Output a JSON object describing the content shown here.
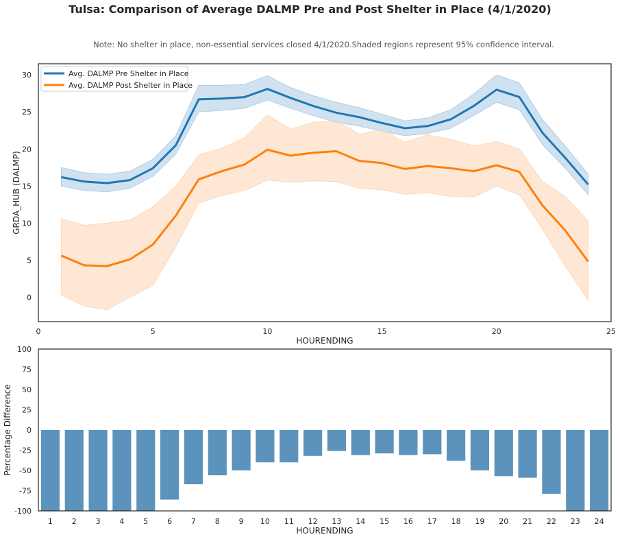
{
  "title": "Tulsa: Comparison of Average DALMP Pre and Post Shelter in Place (4/1/2020)",
  "note": "Note: No shelter in place, non-essential services closed 4/1/2020.Shaded regions represent 95% confidence interval.",
  "chart_data": [
    {
      "type": "line",
      "xlabel": "HOURENDING",
      "ylabel": "GRDA_HUB (DALMP)",
      "xlim": [
        0,
        25
      ],
      "ylim": [
        -3.3,
        31.5
      ],
      "xticks": [
        0,
        5,
        10,
        15,
        20,
        25
      ],
      "yticks": [
        0,
        5,
        10,
        15,
        20,
        25,
        30
      ],
      "grid": false,
      "legend_position": "top-left",
      "x": [
        1,
        2,
        3,
        4,
        5,
        6,
        7,
        8,
        9,
        10,
        11,
        12,
        13,
        14,
        15,
        16,
        17,
        18,
        19,
        20,
        21,
        22,
        23,
        24
      ],
      "series": [
        {
          "name": "Avg. DALMP Pre Shelter in Place",
          "color": "#1f77b4",
          "band_color": "#aac9e4",
          "values": [
            16.2,
            15.6,
            15.4,
            15.8,
            17.4,
            20.5,
            26.7,
            26.8,
            27.0,
            28.1,
            26.9,
            25.8,
            24.9,
            24.3,
            23.5,
            22.8,
            23.1,
            24.0,
            25.8,
            28.0,
            27.0,
            22.2,
            18.8,
            15.2
          ],
          "ci_lower": [
            15.0,
            14.4,
            14.2,
            14.7,
            16.3,
            19.3,
            25.0,
            25.2,
            25.5,
            26.6,
            25.5,
            24.5,
            23.6,
            23.1,
            22.4,
            21.8,
            22.1,
            22.8,
            24.5,
            26.3,
            25.3,
            20.6,
            17.4,
            13.8
          ],
          "ci_upper": [
            17.5,
            16.8,
            16.6,
            17.0,
            18.6,
            21.8,
            28.6,
            28.6,
            28.7,
            29.9,
            28.3,
            27.2,
            26.3,
            25.6,
            24.7,
            23.8,
            24.2,
            25.3,
            27.4,
            30.0,
            28.9,
            24.0,
            20.4,
            16.6
          ]
        },
        {
          "name": "Avg. DALMP Post Shelter in Place",
          "color": "#ff7f0e",
          "band_color": "#fdd3b0",
          "values": [
            5.6,
            4.3,
            4.2,
            5.1,
            7.1,
            11.0,
            15.9,
            17.0,
            17.9,
            19.9,
            19.1,
            19.5,
            19.7,
            18.4,
            18.1,
            17.3,
            17.7,
            17.4,
            17.0,
            17.8,
            16.9,
            12.4,
            9.0,
            4.8
          ],
          "ci_lower": [
            0.3,
            -1.2,
            -1.7,
            0.0,
            1.6,
            6.8,
            12.7,
            13.7,
            14.4,
            15.8,
            15.5,
            15.7,
            15.6,
            14.7,
            14.5,
            13.9,
            14.1,
            13.6,
            13.5,
            15.0,
            13.8,
            9.2,
            4.2,
            -0.4
          ],
          "ci_upper": [
            10.6,
            9.7,
            10.0,
            10.4,
            12.2,
            15.0,
            19.2,
            20.1,
            21.5,
            24.6,
            22.7,
            23.6,
            23.8,
            22.0,
            22.6,
            20.9,
            21.9,
            21.3,
            20.4,
            21.0,
            20.0,
            15.6,
            13.6,
            10.3
          ]
        }
      ]
    },
    {
      "type": "bar",
      "xlabel": "HOURENDING",
      "ylabel": "Percentage Difference",
      "ylim": [
        -100,
        100
      ],
      "yticks": [
        -100,
        -75,
        -50,
        -25,
        0,
        25,
        50,
        75,
        100
      ],
      "grid": false,
      "color": "#5b93bc",
      "categories": [
        "1",
        "2",
        "3",
        "4",
        "5",
        "6",
        "7",
        "8",
        "9",
        "10",
        "11",
        "12",
        "13",
        "14",
        "15",
        "16",
        "17",
        "18",
        "19",
        "20",
        "21",
        "22",
        "23",
        "24"
      ],
      "values": [
        -100,
        -100,
        -100,
        -100,
        -100,
        -86,
        -67,
        -56,
        -50,
        -40,
        -40,
        -32,
        -26,
        -31,
        -29,
        -31,
        -30,
        -38,
        -50,
        -57,
        -59,
        -79,
        -100,
        -100
      ]
    }
  ]
}
